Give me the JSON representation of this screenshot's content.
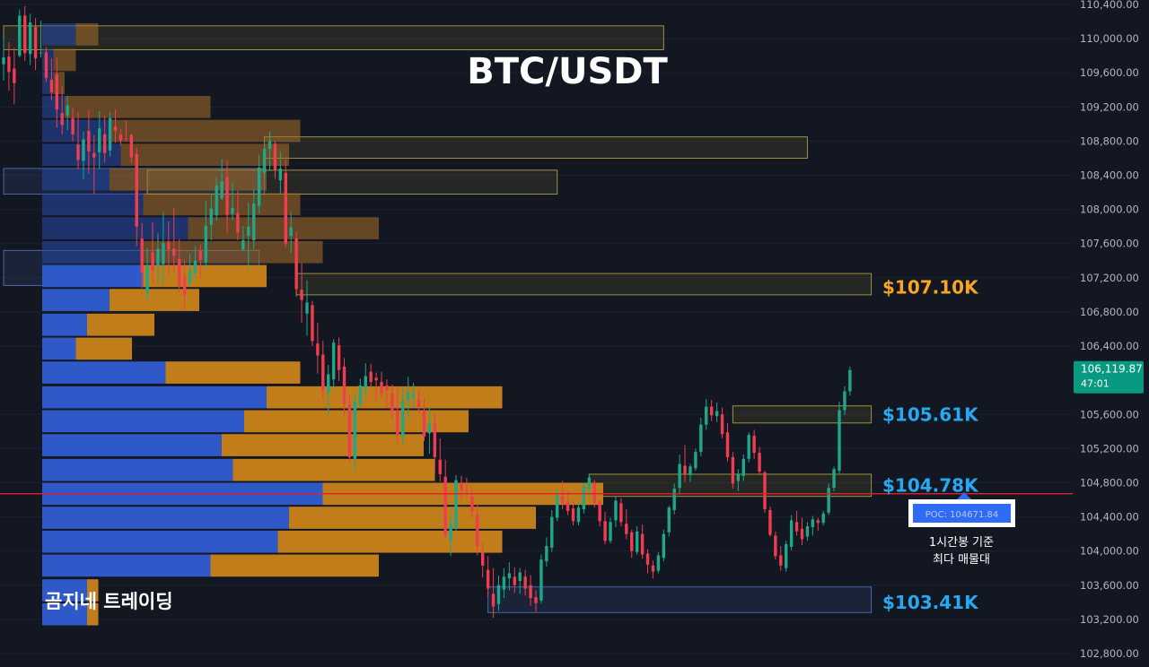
{
  "chart_data": {
    "type": "candlestick",
    "title": "BTC/USDT",
    "watermark": "곰지네 트레이딩",
    "ylim": [
      102700,
      110450
    ],
    "y_ticks": [
      {
        "value": 110400,
        "label": "110,400.00"
      },
      {
        "value": 110000,
        "label": "110,000.00"
      },
      {
        "value": 109600,
        "label": "109,600.00"
      },
      {
        "value": 109200,
        "label": "109,200.00"
      },
      {
        "value": 108800,
        "label": "108,800.00"
      },
      {
        "value": 108400,
        "label": "108,400.00"
      },
      {
        "value": 108000,
        "label": "108,000.00"
      },
      {
        "value": 107600,
        "label": "107,600.00"
      },
      {
        "value": 107200,
        "label": "107,200.00"
      },
      {
        "value": 106800,
        "label": "106,800.00"
      },
      {
        "value": 106400,
        "label": "106,400.00"
      },
      {
        "value": 105600,
        "label": "105,600.00"
      },
      {
        "value": 105200,
        "label": "105,200.00"
      },
      {
        "value": 104800,
        "label": "104,800.00"
      },
      {
        "value": 104400,
        "label": "104,400.00"
      },
      {
        "value": 104000,
        "label": "104,000.00"
      },
      {
        "value": 103600,
        "label": "103,600.00"
      },
      {
        "value": 103200,
        "label": "103,200.00"
      },
      {
        "value": 102800,
        "label": "102,800.00"
      }
    ],
    "last_price": {
      "value": 106119.87,
      "label": "106,119.87",
      "countdown": "47:01"
    },
    "poc": {
      "value": 104671.84,
      "label": "POC: 104671.84",
      "note_line1": "1시간봉 기준",
      "note_line2": "최다 매물대"
    },
    "levels": [
      {
        "value": 107100,
        "label": "$107.10K",
        "color": "#f5a623"
      },
      {
        "value": 105610,
        "label": "$105.61K",
        "color": "#26a9f1"
      },
      {
        "value": 104780,
        "label": "$104.78K",
        "color": "#26a9f1"
      },
      {
        "value": 103410,
        "label": "$103.41K",
        "color": "#26a9f1"
      }
    ],
    "zones": [
      {
        "kind": "supply",
        "t0": 0,
        "t1": 124,
        "lo": 109870,
        "hi": 110150
      },
      {
        "kind": "supply",
        "t0": 49,
        "t1": 151,
        "lo": 108600,
        "hi": 108850
      },
      {
        "kind": "demand",
        "t0": 0,
        "t1": 49,
        "lo": 108180,
        "hi": 108480
      },
      {
        "kind": "supply",
        "t0": 27,
        "t1": 104,
        "lo": 108180,
        "hi": 108460
      },
      {
        "kind": "demand",
        "t0": 0,
        "t1": 48,
        "lo": 107110,
        "hi": 107520
      },
      {
        "kind": "supply",
        "t0": 55,
        "t1": 163,
        "lo": 107000,
        "hi": 107250
      },
      {
        "kind": "supply",
        "t0": 137,
        "t1": 163,
        "lo": 105500,
        "hi": 105700
      },
      {
        "kind": "supply",
        "t0": 110,
        "t1": 163,
        "lo": 104640,
        "hi": 104900
      },
      {
        "kind": "demand",
        "t0": 91,
        "t1": 163,
        "lo": 103280,
        "hi": 103580
      }
    ],
    "volume_profile": [
      {
        "price": 110050,
        "buy": 3,
        "sell": 2
      },
      {
        "price": 109750,
        "buy": 1,
        "sell": 2
      },
      {
        "price": 109480,
        "buy": 1,
        "sell": 1
      },
      {
        "price": 109200,
        "buy": 2,
        "sell": 13
      },
      {
        "price": 108920,
        "buy": 6,
        "sell": 17
      },
      {
        "price": 108640,
        "buy": 7,
        "sell": 15
      },
      {
        "price": 108350,
        "buy": 6,
        "sell": 14
      },
      {
        "price": 108060,
        "buy": 9,
        "sell": 14
      },
      {
        "price": 107780,
        "buy": 13,
        "sell": 17
      },
      {
        "price": 107500,
        "buy": 9,
        "sell": 16
      },
      {
        "price": 107220,
        "buy": 9,
        "sell": 11
      },
      {
        "price": 106940,
        "buy": 6,
        "sell": 8
      },
      {
        "price": 106650,
        "buy": 4,
        "sell": 6
      },
      {
        "price": 106370,
        "buy": 3,
        "sell": 5
      },
      {
        "price": 106090,
        "buy": 11,
        "sell": 12
      },
      {
        "price": 105800,
        "buy": 20,
        "sell": 21
      },
      {
        "price": 105520,
        "buy": 18,
        "sell": 20
      },
      {
        "price": 105240,
        "buy": 16,
        "sell": 18
      },
      {
        "price": 104950,
        "buy": 17,
        "sell": 18
      },
      {
        "price": 104670,
        "buy": 25,
        "sell": 25
      },
      {
        "price": 104390,
        "buy": 22,
        "sell": 22
      },
      {
        "price": 104110,
        "buy": 21,
        "sell": 20
      },
      {
        "price": 103830,
        "buy": 15,
        "sell": 15
      },
      {
        "price": 103540,
        "buy": 4,
        "sell": 1
      },
      {
        "price": 103260,
        "buy": 4,
        "sell": 1
      }
    ],
    "candles": [
      [
        109700,
        110010,
        109510,
        109780
      ],
      [
        109790,
        109960,
        109390,
        109610
      ],
      [
        109650,
        109890,
        109230,
        109480
      ],
      [
        109800,
        110340,
        109780,
        110270
      ],
      [
        110270,
        110380,
        109740,
        109830
      ],
      [
        109820,
        110290,
        109690,
        110190
      ],
      [
        110140,
        110240,
        109630,
        109770
      ],
      [
        109840,
        110210,
        109780,
        109840
      ],
      [
        109840,
        109900,
        109490,
        109540
      ],
      [
        109520,
        109770,
        109280,
        109370
      ],
      [
        109580,
        109780,
        108960,
        109170
      ],
      [
        109130,
        109440,
        108880,
        108990
      ],
      [
        109100,
        109330,
        108930,
        109220
      ],
      [
        109070,
        109190,
        108800,
        108880
      ],
      [
        108760,
        109140,
        108470,
        108580
      ],
      [
        108570,
        108910,
        108350,
        108820
      ],
      [
        108920,
        109170,
        108420,
        108680
      ],
      [
        108660,
        108870,
        108180,
        108610
      ],
      [
        108670,
        109150,
        108470,
        108950
      ],
      [
        108880,
        109100,
        108550,
        108660
      ],
      [
        108690,
        109140,
        108620,
        109070
      ],
      [
        108970,
        109170,
        108780,
        108920
      ],
      [
        108880,
        108940,
        108750,
        108810
      ],
      [
        108830,
        109040,
        108800,
        108820
      ],
      [
        108870,
        108890,
        108540,
        108610
      ],
      [
        108650,
        108720,
        107570,
        107800
      ],
      [
        107660,
        107840,
        107080,
        107260
      ],
      [
        107020,
        107550,
        106930,
        107350
      ],
      [
        107500,
        107850,
        107140,
        107290
      ],
      [
        107340,
        107720,
        107130,
        107540
      ],
      [
        107360,
        107970,
        107110,
        107610
      ],
      [
        107620,
        107860,
        107240,
        107530
      ],
      [
        107540,
        108020,
        107280,
        107460
      ],
      [
        107420,
        107650,
        107030,
        107100
      ],
      [
        107210,
        107400,
        106810,
        107000
      ],
      [
        107130,
        107480,
        107110,
        107280
      ],
      [
        107250,
        107570,
        107200,
        107400
      ],
      [
        107510,
        107590,
        107190,
        107410
      ],
      [
        107380,
        108100,
        107300,
        107810
      ],
      [
        107820,
        108170,
        107640,
        108010
      ],
      [
        107930,
        108380,
        107870,
        108280
      ],
      [
        108130,
        108590,
        108110,
        108330
      ],
      [
        108380,
        108580,
        107720,
        107940
      ],
      [
        107950,
        108310,
        107880,
        108020
      ],
      [
        107960,
        108220,
        107640,
        107730
      ],
      [
        107530,
        107810,
        107510,
        107640
      ],
      [
        107690,
        108080,
        107310,
        107800
      ],
      [
        107640,
        108240,
        107530,
        108070
      ],
      [
        108040,
        108640,
        107950,
        108490
      ],
      [
        108430,
        108750,
        108350,
        108710
      ],
      [
        108710,
        108910,
        108450,
        108800
      ],
      [
        108770,
        108800,
        108360,
        108460
      ],
      [
        108340,
        108680,
        108190,
        108480
      ],
      [
        108430,
        108580,
        107560,
        107600
      ],
      [
        107690,
        107970,
        107490,
        107790
      ],
      [
        107660,
        107740,
        106980,
        107070
      ],
      [
        107060,
        107370,
        106670,
        106940
      ],
      [
        106780,
        107170,
        106520,
        106910
      ],
      [
        106880,
        106930,
        106400,
        106460
      ],
      [
        106430,
        106670,
        106080,
        106290
      ],
      [
        106300,
        106460,
        105780,
        105880
      ],
      [
        105850,
        106180,
        105590,
        106070
      ],
      [
        106010,
        106480,
        105890,
        106440
      ],
      [
        106410,
        106500,
        105990,
        106120
      ],
      [
        106160,
        106260,
        105580,
        105720
      ],
      [
        105720,
        105830,
        105040,
        105100
      ],
      [
        105080,
        105850,
        104940,
        105760
      ],
      [
        105710,
        106020,
        105680,
        105940
      ],
      [
        105900,
        106200,
        105780,
        106050
      ],
      [
        106100,
        106190,
        105910,
        105980
      ],
      [
        106030,
        106090,
        105770,
        106000
      ],
      [
        105980,
        106100,
        105790,
        105850
      ],
      [
        105940,
        106010,
        105670,
        105880
      ],
      [
        105850,
        105950,
        105540,
        105640
      ],
      [
        105650,
        105920,
        105260,
        105360
      ],
      [
        105340,
        105910,
        105240,
        105760
      ],
      [
        105760,
        106040,
        105550,
        105860
      ],
      [
        105800,
        105970,
        105670,
        105840
      ],
      [
        105780,
        105890,
        105620,
        105690
      ],
      [
        105640,
        105790,
        105290,
        105340
      ],
      [
        105380,
        105680,
        105140,
        105500
      ],
      [
        105490,
        105620,
        104920,
        105100
      ],
      [
        105070,
        105320,
        104810,
        104900
      ],
      [
        104870,
        105070,
        104140,
        104180
      ],
      [
        104120,
        104450,
        103940,
        104330
      ],
      [
        104270,
        104890,
        104240,
        104830
      ],
      [
        104790,
        104880,
        104590,
        104710
      ],
      [
        104720,
        104860,
        104620,
        104700
      ],
      [
        104640,
        104760,
        104380,
        104460
      ],
      [
        104430,
        104560,
        103950,
        104060
      ],
      [
        103980,
        104110,
        103690,
        103830
      ],
      [
        103780,
        103940,
        103460,
        103560
      ],
      [
        103500,
        103800,
        103220,
        103350
      ],
      [
        103380,
        103710,
        103300,
        103600
      ],
      [
        103550,
        103800,
        103450,
        103700
      ],
      [
        103680,
        103870,
        103540,
        103740
      ],
      [
        103700,
        103810,
        103510,
        103600
      ],
      [
        103650,
        103800,
        103500,
        103750
      ],
      [
        103700,
        103780,
        103480,
        103560
      ],
      [
        103600,
        103720,
        103360,
        103450
      ],
      [
        103460,
        103540,
        103290,
        103390
      ],
      [
        103420,
        103960,
        103390,
        103900
      ],
      [
        103880,
        104160,
        103820,
        104060
      ],
      [
        104040,
        104480,
        103990,
        104400
      ],
      [
        104390,
        104720,
        104350,
        104650
      ],
      [
        104640,
        104820,
        104490,
        104560
      ],
      [
        104580,
        104700,
        104420,
        104470
      ],
      [
        104500,
        104590,
        104300,
        104350
      ],
      [
        104340,
        104580,
        104300,
        104510
      ],
      [
        104490,
        104800,
        104440,
        104760
      ],
      [
        104720,
        104900,
        104620,
        104860
      ],
      [
        104800,
        104830,
        104510,
        104560
      ],
      [
        104580,
        104600,
        104290,
        104350
      ],
      [
        104350,
        104460,
        104080,
        104120
      ],
      [
        104120,
        104390,
        104090,
        104340
      ],
      [
        104360,
        104640,
        104280,
        104590
      ],
      [
        104560,
        104620,
        104290,
        104340
      ],
      [
        104320,
        104490,
        104140,
        104200
      ],
      [
        104220,
        104250,
        103920,
        104000
      ],
      [
        103990,
        104290,
        103960,
        104230
      ],
      [
        104200,
        104310,
        103910,
        103960
      ],
      [
        103970,
        104020,
        103740,
        103840
      ],
      [
        103830,
        103890,
        103680,
        103760
      ],
      [
        103770,
        103990,
        103740,
        103950
      ],
      [
        103920,
        104250,
        103880,
        104200
      ],
      [
        104220,
        104530,
        104170,
        104510
      ],
      [
        104480,
        104790,
        104430,
        104730
      ],
      [
        104740,
        105130,
        104660,
        105020
      ],
      [
        105000,
        105240,
        104810,
        104900
      ],
      [
        104890,
        105020,
        104810,
        104990
      ],
      [
        104970,
        105200,
        104940,
        105160
      ],
      [
        105160,
        105560,
        105110,
        105480
      ],
      [
        105480,
        105780,
        105420,
        105690
      ],
      [
        105690,
        105770,
        105520,
        105590
      ],
      [
        105580,
        105740,
        105510,
        105640
      ],
      [
        105600,
        105680,
        105320,
        105370
      ],
      [
        105390,
        105500,
        105050,
        105100
      ],
      [
        105100,
        105160,
        104730,
        104790
      ],
      [
        104820,
        104960,
        104700,
        104900
      ],
      [
        104880,
        105130,
        104820,
        105080
      ],
      [
        105080,
        105390,
        105040,
        105360
      ],
      [
        105350,
        105420,
        105080,
        105150
      ],
      [
        105150,
        105220,
        104890,
        104930
      ],
      [
        104920,
        104940,
        104450,
        104490
      ],
      [
        104480,
        104520,
        104170,
        104190
      ],
      [
        104180,
        104230,
        103900,
        103940
      ],
      [
        103950,
        104060,
        103770,
        103830
      ],
      [
        103800,
        104120,
        103760,
        104080
      ],
      [
        104050,
        104420,
        104010,
        104360
      ],
      [
        104340,
        104470,
        104180,
        104230
      ],
      [
        104260,
        104390,
        104070,
        104140
      ],
      [
        104170,
        104340,
        104120,
        104290
      ],
      [
        104280,
        104410,
        104180,
        104370
      ],
      [
        104360,
        104390,
        104240,
        104330
      ],
      [
        104330,
        104470,
        104300,
        104440
      ],
      [
        104450,
        104790,
        104420,
        104740
      ],
      [
        104740,
        104990,
        104700,
        104960
      ],
      [
        104940,
        105750,
        104910,
        105650
      ],
      [
        105650,
        105930,
        105590,
        105870
      ],
      [
        105870,
        106160,
        105820,
        106120
      ]
    ]
  }
}
